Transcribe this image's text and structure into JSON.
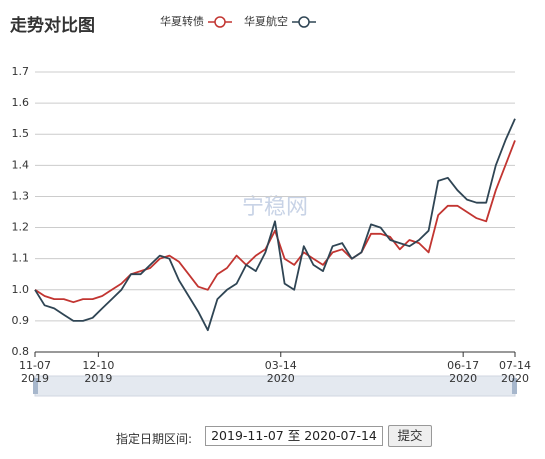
{
  "chart_data": {
    "type": "line",
    "title": "走势对比图",
    "watermark": "宁稳网",
    "x": [
      "2019-11-07",
      "2019-11-12",
      "2019-11-17",
      "2019-11-22",
      "2019-11-27",
      "2019-12-02",
      "2019-12-07",
      "2019-12-12",
      "2019-12-17",
      "2019-12-22",
      "2019-12-27",
      "2020-01-01",
      "2020-01-06",
      "2020-01-11",
      "2020-01-16",
      "2020-01-21",
      "2020-01-26",
      "2020-01-31",
      "2020-02-05",
      "2020-02-10",
      "2020-02-15",
      "2020-02-20",
      "2020-02-25",
      "2020-03-01",
      "2020-03-06",
      "2020-03-11",
      "2020-03-16",
      "2020-03-21",
      "2020-03-26",
      "2020-03-31",
      "2020-04-05",
      "2020-04-10",
      "2020-04-15",
      "2020-04-20",
      "2020-04-25",
      "2020-04-30",
      "2020-05-05",
      "2020-05-10",
      "2020-05-15",
      "2020-05-20",
      "2020-05-25",
      "2020-05-30",
      "2020-06-04",
      "2020-06-09",
      "2020-06-14",
      "2020-06-19",
      "2020-06-24",
      "2020-06-29",
      "2020-07-04",
      "2020-07-09",
      "2020-07-14"
    ],
    "series": [
      {
        "name": "华夏转债",
        "color": "#c23531",
        "values": [
          1.0,
          0.98,
          0.97,
          0.97,
          0.96,
          0.97,
          0.97,
          0.98,
          1.0,
          1.02,
          1.05,
          1.06,
          1.07,
          1.1,
          1.11,
          1.09,
          1.05,
          1.01,
          1.0,
          1.05,
          1.07,
          1.11,
          1.08,
          1.11,
          1.13,
          1.19,
          1.1,
          1.08,
          1.12,
          1.1,
          1.08,
          1.12,
          1.13,
          1.1,
          1.12,
          1.18,
          1.18,
          1.17,
          1.13,
          1.16,
          1.15,
          1.12,
          1.24,
          1.27,
          1.27,
          1.25,
          1.23,
          1.22,
          1.32,
          1.4,
          1.48
        ]
      },
      {
        "name": "华夏航空",
        "color": "#2f4554",
        "values": [
          1.0,
          0.95,
          0.94,
          0.92,
          0.9,
          0.9,
          0.91,
          0.94,
          0.97,
          1.0,
          1.05,
          1.05,
          1.08,
          1.11,
          1.1,
          1.03,
          0.98,
          0.93,
          0.87,
          0.97,
          1.0,
          1.02,
          1.08,
          1.06,
          1.12,
          1.22,
          1.02,
          1.0,
          1.14,
          1.08,
          1.06,
          1.14,
          1.15,
          1.1,
          1.12,
          1.21,
          1.2,
          1.16,
          1.15,
          1.14,
          1.16,
          1.19,
          1.35,
          1.36,
          1.32,
          1.29,
          1.28,
          1.28,
          1.4,
          1.48,
          1.55
        ]
      }
    ],
    "xlim": [
      "2019-11-07",
      "2020-07-14"
    ],
    "xticks": [
      {
        "value": "2019-11-07",
        "label": [
          "11-07",
          "2019"
        ]
      },
      {
        "value": "2019-12-10",
        "label": [
          "12-10",
          "2019"
        ]
      },
      {
        "value": "2020-03-14",
        "label": [
          "03-14",
          "2020"
        ]
      },
      {
        "value": "2020-06-17",
        "label": [
          "06-17",
          "2020"
        ]
      },
      {
        "value": "2020-07-14",
        "label": [
          "07-14",
          "2020"
        ]
      }
    ],
    "ylim": [
      0.8,
      1.7
    ],
    "yticks": [
      0.8,
      0.9,
      {
        "value": 1,
        "label": "1.0"
      },
      1.1,
      1.2,
      1.3,
      1.4,
      1.5,
      1.6,
      1.7
    ],
    "grid": true
  },
  "form": {
    "label": "指定日期区间:",
    "start": "2019-11-07",
    "separator": "至",
    "end": "2020-07-14",
    "button": "提交"
  }
}
